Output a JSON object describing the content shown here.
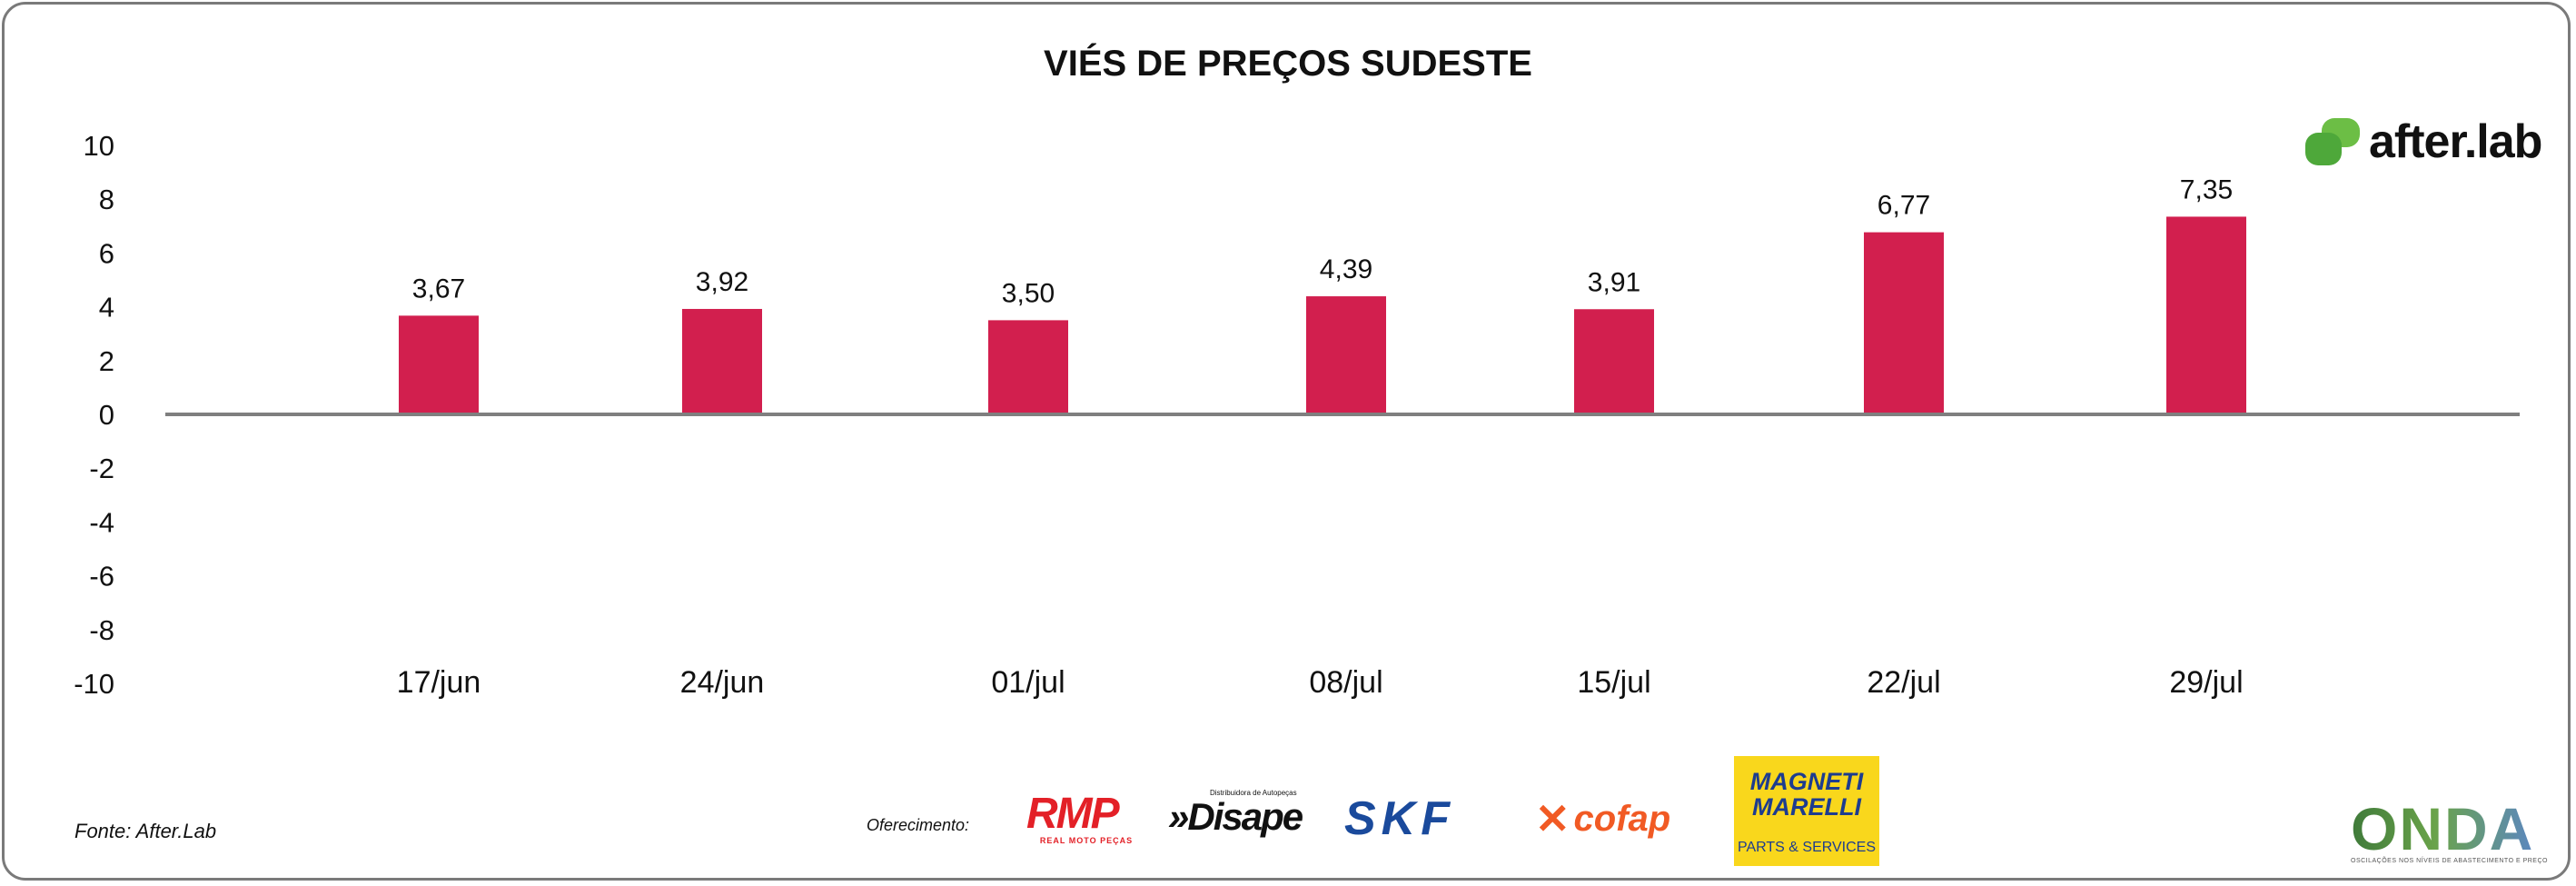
{
  "chart_data": {
    "type": "bar",
    "title": "VIÉS DE PREÇOS SUDESTE",
    "categories": [
      "17/jun",
      "24/jun",
      "01/jul",
      "08/jul",
      "15/jul",
      "22/jul",
      "29/jul"
    ],
    "values": [
      3.67,
      3.92,
      3.5,
      4.39,
      3.91,
      6.77,
      7.35
    ],
    "value_labels": [
      "3,67",
      "3,92",
      "3,50",
      "4,39",
      "3,91",
      "6,77",
      "7,35"
    ],
    "ylim": [
      -10,
      10
    ],
    "yticks": [
      10,
      8,
      6,
      4,
      2,
      0,
      -2,
      -4,
      -6,
      -8,
      -10
    ],
    "grid": false,
    "legend": "none",
    "bar_color": "#d21f4e"
  },
  "footer": {
    "source": "Fonte: After.Lab",
    "sponsor_label": "Oferecimento:"
  },
  "brands": {
    "afterlab": "after.lab",
    "rmp": "RMP",
    "rmp_sub": "REAL MOTO PEÇAS",
    "disape_tagline": "Distribuidora de Autopeças",
    "disape": "»Disape",
    "skf": "SKF",
    "cofap": "cofap",
    "magneti_top": "MAGNETI MARELLI",
    "magneti_bottom": "PARTS & SERVICES",
    "onda": "ONDA",
    "onda_sub": "OSCILAÇÕES NOS NÍVEIS DE ABASTECIMENTO E PREÇO"
  }
}
